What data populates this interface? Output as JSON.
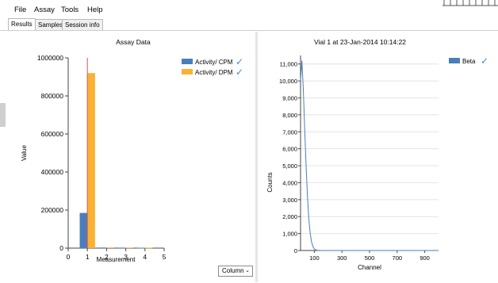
{
  "menu": {
    "items": [
      "File",
      "Assay",
      "Tools",
      "Help"
    ]
  },
  "tabs": [
    {
      "label": "Results",
      "active": true
    },
    {
      "label": "Samples",
      "active": false
    },
    {
      "label": "Session info",
      "active": false
    }
  ],
  "chart_type_select": {
    "value": "Column"
  },
  "colors": {
    "cpm": "#4a7ebb",
    "dpm": "#f9b233",
    "beta": "#4a7ebb",
    "marker": "#e0524c",
    "check": "#3b8fe0"
  },
  "chart_data": [
    {
      "type": "bar",
      "title": "Assay Data",
      "xlabel": "Measurement",
      "ylabel": "Value",
      "xlim": [
        0,
        5
      ],
      "ylim": [
        0,
        1000000
      ],
      "xticks": [
        "0",
        "1",
        "2",
        "3",
        "4",
        "5"
      ],
      "yticks": [
        "0",
        "200000",
        "400000",
        "600000",
        "800000",
        "1000000"
      ],
      "categories": [
        "1",
        "2",
        "3",
        "4"
      ],
      "series": [
        {
          "name": "Activity/ CPM",
          "values": [
            185000,
            3000,
            2500,
            2000
          ]
        },
        {
          "name": "Activity/ DPM",
          "values": [
            920000,
            3500,
            3000,
            2500
          ]
        }
      ],
      "marker_x": 1,
      "legend": "top-right"
    },
    {
      "type": "line",
      "title": "Vial 1 at 23-Jan-2014 10:14:22",
      "xlabel": "Channel",
      "ylabel": "Counts",
      "xlim": [
        0,
        1000
      ],
      "ylim": [
        0,
        11500
      ],
      "xticks": [
        "100",
        "300",
        "500",
        "700",
        "900"
      ],
      "yticks": [
        "0",
        "1,000",
        "2,000",
        "3,000",
        "4,000",
        "5,000",
        "6,000",
        "7,000",
        "8,000",
        "9,000",
        "10,000",
        "11,000"
      ],
      "series": [
        {
          "name": "Beta",
          "x": [
            0,
            10,
            20,
            30,
            40,
            50,
            60,
            70,
            80,
            90,
            100,
            110,
            120,
            140,
            200,
            400,
            600,
            800,
            1000
          ],
          "y": [
            10000,
            11200,
            9500,
            7200,
            5000,
            3200,
            1900,
            1000,
            500,
            220,
            90,
            40,
            15,
            5,
            0,
            0,
            0,
            0,
            0
          ]
        }
      ],
      "legend": "top-right"
    }
  ]
}
